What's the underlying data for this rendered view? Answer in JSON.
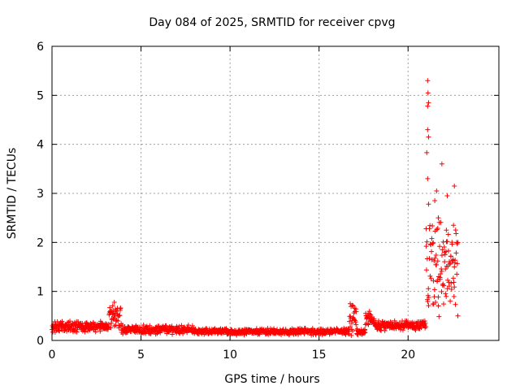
{
  "chart_data": {
    "type": "scatter",
    "title": "Day 084 of 2025, SRMTID for receiver cpvg",
    "xlabel": "GPS time / hours",
    "ylabel": "SRMTID / TECUs",
    "xlim": [
      0,
      25.1
    ],
    "ylim": [
      0,
      6
    ],
    "xticks": [
      0,
      5,
      10,
      15,
      20
    ],
    "yticks": [
      0,
      1,
      2,
      3,
      4,
      5,
      6
    ],
    "grid": true,
    "marker": "+",
    "color": "#ff0000",
    "series": [
      {
        "name": "SRMTID",
        "segments": [
          {
            "t0": 0.0,
            "t1": 3.2,
            "base": 0.28,
            "jitter": 0.08
          },
          {
            "t0": 3.2,
            "t1": 3.9,
            "base": 0.5,
            "jitter": 0.18
          },
          {
            "t0": 3.9,
            "t1": 8.0,
            "base": 0.22,
            "jitter": 0.07
          },
          {
            "t0": 8.0,
            "t1": 16.7,
            "base": 0.18,
            "jitter": 0.05
          },
          {
            "t0": 16.7,
            "t1": 17.1,
            "base": 0.45,
            "jitter": 0.25
          },
          {
            "t0": 17.1,
            "t1": 17.6,
            "base": 0.18,
            "jitter": 0.05
          },
          {
            "t0": 17.6,
            "t1": 18.1,
            "base": 0.45,
            "jitter": 0.12
          },
          {
            "t0": 18.1,
            "t1": 21.0,
            "base": 0.3,
            "jitter": 0.08
          },
          {
            "t0": 21.0,
            "t1": 22.8,
            "base": 1.6,
            "jitter": 0.8
          }
        ],
        "notable_points": [
          {
            "x": 21.1,
            "y": 5.3
          },
          {
            "x": 21.12,
            "y": 5.05
          },
          {
            "x": 21.15,
            "y": 4.85
          },
          {
            "x": 21.1,
            "y": 4.78
          },
          {
            "x": 21.1,
            "y": 4.3
          },
          {
            "x": 21.15,
            "y": 4.15
          },
          {
            "x": 21.05,
            "y": 3.83
          },
          {
            "x": 21.9,
            "y": 3.6
          },
          {
            "x": 21.1,
            "y": 3.3
          },
          {
            "x": 22.6,
            "y": 3.15
          },
          {
            "x": 21.6,
            "y": 3.05
          },
          {
            "x": 22.2,
            "y": 2.95
          },
          {
            "x": 21.5,
            "y": 2.85
          },
          {
            "x": 21.15,
            "y": 2.78
          },
          {
            "x": 21.7,
            "y": 2.5
          },
          {
            "x": 22.55,
            "y": 2.35
          },
          {
            "x": 22.15,
            "y": 2.25
          },
          {
            "x": 22.8,
            "y": 2.0
          },
          {
            "x": 16.75,
            "y": 0.75
          },
          {
            "x": 3.5,
            "y": 0.78
          }
        ]
      }
    ]
  }
}
